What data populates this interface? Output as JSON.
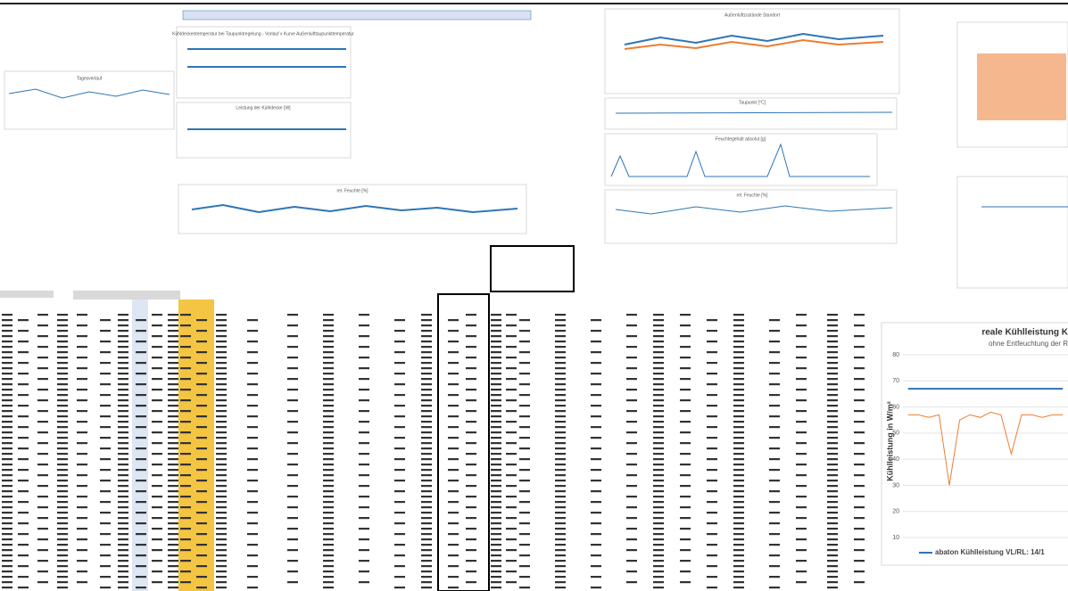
{
  "sheet": {
    "charts": [
      {
        "title": "Tagesverlauf"
      },
      {
        "title": "Kühldeckentemperatur bei Taupunktregelung - Vorlauf x Kurve Außenlufttaupunkttemperatur"
      },
      {
        "title": "Leistung der Kühldecke [W]"
      },
      {
        "title": "rel. Feuchte [%]"
      },
      {
        "title": "Außenluftzustände Standort"
      },
      {
        "title": "Taupunkt [°C]"
      },
      {
        "title": "Feuchtegehalt absolut [g]"
      },
      {
        "title": "rel. Feuchte [%]"
      }
    ]
  },
  "chart_data": {
    "type": "line",
    "title": "reale Kühlleistung K",
    "subtitle": "ohne Entfeuchtung der R",
    "ylabel": "Kühlleistung in W/m²",
    "categories": [
      null,
      null,
      null,
      null,
      null,
      null,
      null,
      null,
      null,
      null,
      null,
      null,
      null,
      null,
      null,
      null
    ],
    "series": [
      {
        "name": "abaton Kühlleistung VL/RL: 14/1",
        "color": "#2e75b6",
        "values": [
          67,
          67,
          67,
          67,
          67,
          67,
          67,
          67,
          67,
          67,
          67,
          67,
          67,
          67,
          67,
          67
        ]
      },
      {
        "color": "#ed7d31",
        "values": [
          57,
          57,
          56,
          57,
          30,
          55,
          57,
          56,
          58,
          57,
          42,
          57,
          57,
          56,
          57,
          57
        ]
      }
    ],
    "ylim": [
      10,
      80
    ],
    "yticks": [
      10,
      20,
      30,
      40,
      50,
      60,
      70,
      80
    ],
    "grid": true
  }
}
